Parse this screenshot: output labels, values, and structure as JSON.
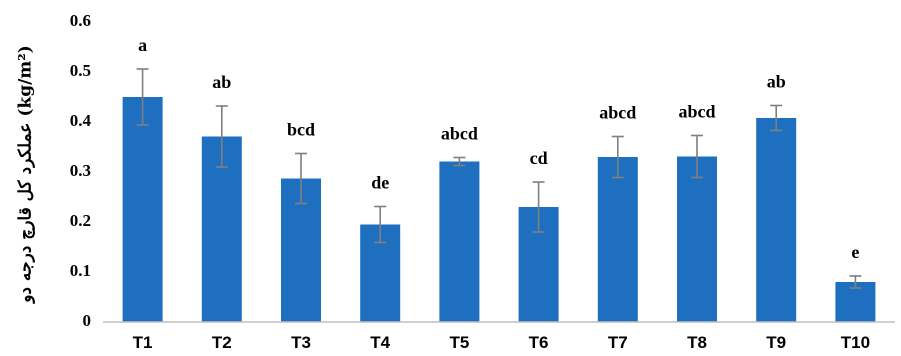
{
  "chart_data": {
    "type": "bar",
    "categories": [
      "T1",
      "T2",
      "T3",
      "T4",
      "T5",
      "T6",
      "T7",
      "T8",
      "T9",
      "T10"
    ],
    "values": [
      0.45,
      0.371,
      0.287,
      0.195,
      0.321,
      0.23,
      0.33,
      0.331,
      0.408,
      0.08
    ],
    "errors": [
      0.056,
      0.061,
      0.05,
      0.036,
      0.008,
      0.05,
      0.041,
      0.042,
      0.025,
      0.012
    ],
    "labels": [
      "a",
      "ab",
      "bcd",
      "de",
      "abcd",
      "cd",
      "abcd",
      "abcd",
      "ab",
      "e"
    ],
    "title": "",
    "xlabel": "",
    "ylabel": "عملکرد کل قارچ درجه دو (kg/m²)",
    "ylim": [
      0,
      0.6
    ],
    "yticks": [
      0,
      0.1,
      0.2,
      0.3,
      0.4,
      0.5,
      0.6
    ],
    "ytick_labels": [
      "0",
      "0.1",
      "0.2",
      "0.3",
      "0.4",
      "0.5",
      "0.6"
    ],
    "grid": false,
    "legend": "none",
    "colors": {
      "bar": "#1f6fc0",
      "error_bar": "#7f7f7f",
      "axis": "#bfbfbf"
    }
  }
}
